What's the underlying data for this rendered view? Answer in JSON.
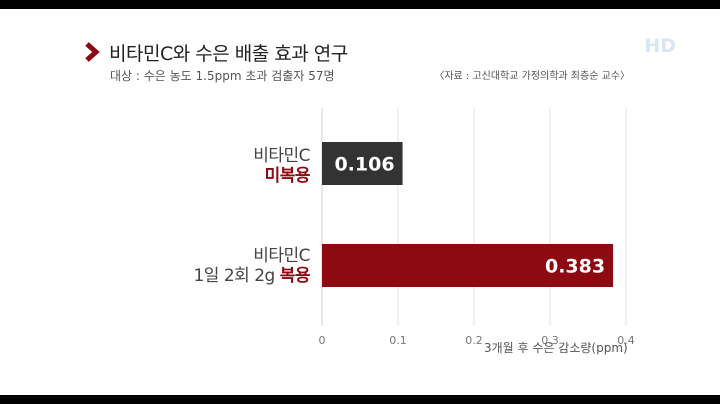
{
  "header": {
    "title": "비타민C와  수은 배출 효과 연구",
    "subtitle": "대상 : 수은 농도 1.5ppm 초과 검출자 57명",
    "source": "〈자료 : 고신대학교 가정의학과 최층순 교수〉",
    "hd_badge": "HD"
  },
  "categories": [
    {
      "line1": "비타민C",
      "line2_prefix": "",
      "line2_highlight": "미복용"
    },
    {
      "line1": "비타민C",
      "line2_prefix": "1일 2회 2g ",
      "line2_highlight": "복용"
    }
  ],
  "chart_data": {
    "type": "bar",
    "orientation": "horizontal",
    "categories": [
      "비타민C 미복용",
      "비타민C 1일 2회 2g 복용"
    ],
    "values": [
      0.106,
      0.383
    ],
    "value_labels": [
      "0.106",
      "0.383"
    ],
    "bar_colors": [
      "#333333",
      "#8e0a12"
    ],
    "xlabel": "3개월 후 수은 감소량(ppm)",
    "xlim": [
      0,
      0.4
    ],
    "xticks": [
      "0",
      "0.1",
      "0.2",
      "0.3",
      "0.4"
    ],
    "grid": true
  }
}
